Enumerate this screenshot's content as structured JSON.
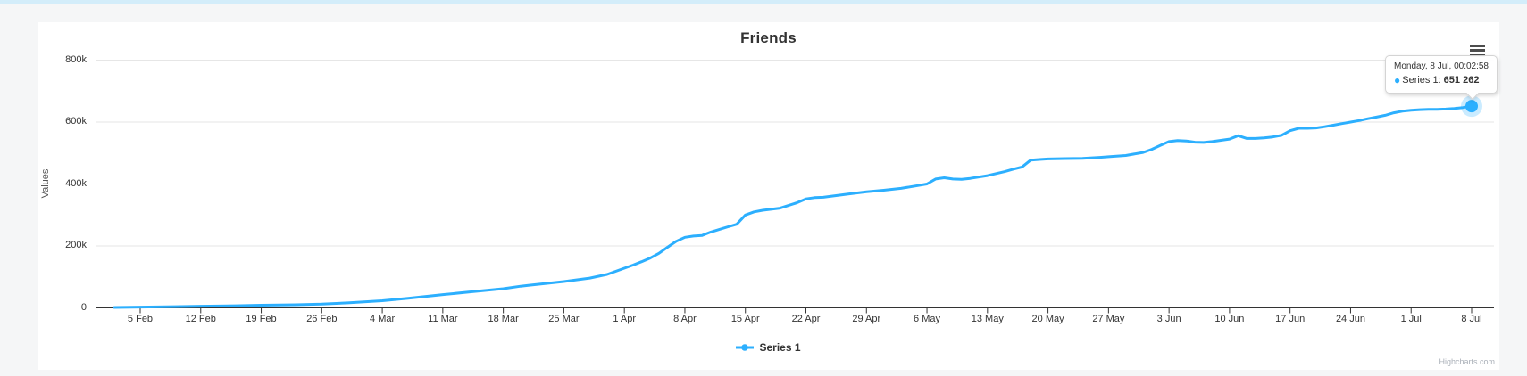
{
  "page": {
    "background_color": "#f5f6f7",
    "top_bar_color": "#d3edfa"
  },
  "chart": {
    "title": "Friends",
    "colors": {
      "line": "#2caffe",
      "halo": "rgba(44,175,254,0.25)",
      "grid": "#e6e6e6",
      "axis": "#333333"
    },
    "y_axis": {
      "title": "Values",
      "tick_labels": [
        "0",
        "200k",
        "400k",
        "600k",
        "800k"
      ],
      "tick_values": [
        0,
        200000,
        400000,
        600000,
        800000
      ]
    },
    "x_axis": {
      "tick_labels": [
        "5 Feb",
        "12 Feb",
        "19 Feb",
        "26 Feb",
        "4 Mar",
        "11 Mar",
        "18 Mar",
        "25 Mar",
        "1 Apr",
        "8 Apr",
        "15 Apr",
        "22 Apr",
        "29 Apr",
        "6 May",
        "13 May",
        "20 May",
        "27 May",
        "3 Jun",
        "10 Jun",
        "17 Jun",
        "24 Jun",
        "1 Jul",
        "8 Jul"
      ],
      "tick_days": [
        4,
        11,
        18,
        25,
        32,
        39,
        46,
        53,
        60,
        67,
        74,
        81,
        88,
        95,
        102,
        109,
        116,
        123,
        130,
        137,
        144,
        151,
        158
      ]
    },
    "legend": {
      "series_label": "Series 1"
    },
    "tooltip": {
      "header": "Monday, 8 Jul, 00:02:58",
      "bullet": "●",
      "series_label": "Series 1:",
      "value": "651 262"
    },
    "export_menu_icon": "hamburger-menu-icon",
    "credits": "Highcharts.com"
  },
  "chart_data": {
    "type": "line",
    "title": "Friends",
    "xlabel": "",
    "ylabel": "Values",
    "ylim": [
      0,
      800000
    ],
    "grid": true,
    "legend_position": "bottom-center",
    "x_unit": "days since 1 Feb",
    "x_tick_labels": [
      "5 Feb",
      "12 Feb",
      "19 Feb",
      "26 Feb",
      "4 Mar",
      "11 Mar",
      "18 Mar",
      "25 Mar",
      "1 Apr",
      "8 Apr",
      "15 Apr",
      "22 Apr",
      "29 Apr",
      "6 May",
      "13 May",
      "20 May",
      "27 May",
      "3 Jun",
      "10 Jun",
      "17 Jun",
      "24 Jun",
      "1 Jul",
      "8 Jul"
    ],
    "x_tick_days": [
      4,
      11,
      18,
      25,
      32,
      39,
      46,
      53,
      60,
      67,
      74,
      81,
      88,
      95,
      102,
      109,
      116,
      123,
      130,
      137,
      144,
      151,
      158
    ],
    "series": [
      {
        "name": "Series 1",
        "color": "#2caffe",
        "highlighted_point": {
          "x_label": "Monday, 8 Jul, 00:02:58",
          "value": 651262
        },
        "points": [
          [
            1,
            1500
          ],
          [
            4,
            2500
          ],
          [
            8,
            4000
          ],
          [
            11,
            5500
          ],
          [
            15,
            7000
          ],
          [
            18,
            8500
          ],
          [
            22,
            10000
          ],
          [
            25,
            12000
          ],
          [
            28,
            16000
          ],
          [
            32,
            23000
          ],
          [
            35,
            31000
          ],
          [
            39,
            43000
          ],
          [
            42,
            51000
          ],
          [
            46,
            62000
          ],
          [
            48,
            70000
          ],
          [
            49,
            73000
          ],
          [
            53,
            85000
          ],
          [
            56,
            96000
          ],
          [
            58,
            108000
          ],
          [
            60,
            128000
          ],
          [
            61,
            138000
          ],
          [
            62,
            149000
          ],
          [
            63,
            161000
          ],
          [
            64,
            176000
          ],
          [
            65,
            196000
          ],
          [
            66,
            215000
          ],
          [
            67,
            228000
          ],
          [
            68,
            232000
          ],
          [
            69,
            234000
          ],
          [
            70,
            245000
          ],
          [
            72,
            262000
          ],
          [
            73,
            270000
          ],
          [
            74,
            300000
          ],
          [
            75,
            310000
          ],
          [
            76,
            315000
          ],
          [
            78,
            322000
          ],
          [
            80,
            340000
          ],
          [
            81,
            352000
          ],
          [
            82,
            356000
          ],
          [
            83,
            357000
          ],
          [
            84,
            361000
          ],
          [
            86,
            368000
          ],
          [
            88,
            375000
          ],
          [
            90,
            380000
          ],
          [
            92,
            386000
          ],
          [
            94,
            395000
          ],
          [
            95,
            400000
          ],
          [
            96,
            416000
          ],
          [
            97,
            420000
          ],
          [
            98,
            416000
          ],
          [
            99,
            415000
          ],
          [
            100,
            418000
          ],
          [
            102,
            427000
          ],
          [
            104,
            440000
          ],
          [
            105,
            448000
          ],
          [
            106,
            455000
          ],
          [
            107,
            477000
          ],
          [
            108,
            479000
          ],
          [
            109,
            481000
          ],
          [
            111,
            482000
          ],
          [
            113,
            483000
          ],
          [
            115,
            486000
          ],
          [
            116,
            488000
          ],
          [
            118,
            492000
          ],
          [
            120,
            502000
          ],
          [
            121,
            512000
          ],
          [
            122,
            525000
          ],
          [
            123,
            537000
          ],
          [
            124,
            540000
          ],
          [
            125,
            539000
          ],
          [
            126,
            535000
          ],
          [
            127,
            534000
          ],
          [
            128,
            537000
          ],
          [
            129,
            541000
          ],
          [
            130,
            545000
          ],
          [
            131,
            556000
          ],
          [
            132,
            547000
          ],
          [
            133,
            547000
          ],
          [
            134,
            549000
          ],
          [
            135,
            552000
          ],
          [
            136,
            557000
          ],
          [
            137,
            572000
          ],
          [
            138,
            580000
          ],
          [
            139,
            580000
          ],
          [
            140,
            581000
          ],
          [
            141,
            585000
          ],
          [
            142,
            590000
          ],
          [
            143,
            595000
          ],
          [
            144,
            600000
          ],
          [
            145,
            605000
          ],
          [
            146,
            611000
          ],
          [
            147,
            616000
          ],
          [
            148,
            622000
          ],
          [
            149,
            630000
          ],
          [
            150,
            635000
          ],
          [
            151,
            638000
          ],
          [
            152,
            640000
          ],
          [
            153,
            641000
          ],
          [
            154,
            641000
          ],
          [
            155,
            642000
          ],
          [
            156,
            644000
          ],
          [
            157,
            647000
          ],
          [
            158,
            651262
          ]
        ]
      }
    ]
  }
}
